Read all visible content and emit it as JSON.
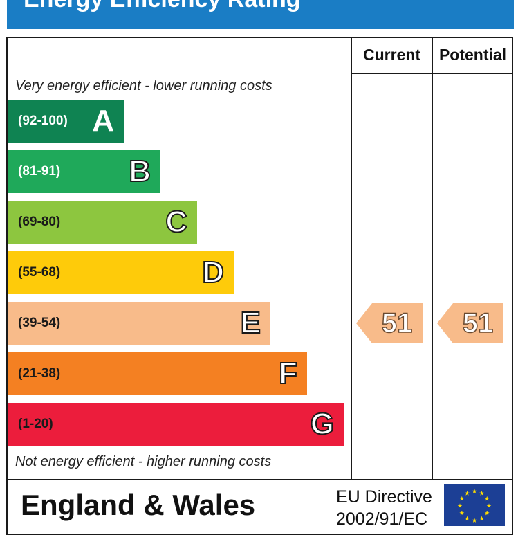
{
  "title": "Energy Efficiency Rating",
  "columns": {
    "current": "Current",
    "potential": "Potential"
  },
  "captions": {
    "top": "Very energy efficient - lower running costs",
    "bottom": "Not energy efficient - higher running costs"
  },
  "chart_data": {
    "type": "bar",
    "title": "Energy Efficiency Rating",
    "categories": [
      "A",
      "B",
      "C",
      "D",
      "E",
      "F",
      "G"
    ],
    "ranges": [
      "(92-100)",
      "(81-91)",
      "(69-80)",
      "(55-68)",
      "(39-54)",
      "(21-38)",
      "(1-20)"
    ],
    "colors": [
      "#0f8352",
      "#1fa95a",
      "#8dc63f",
      "#fecb0a",
      "#f8bb8a",
      "#f48022",
      "#ec1d3c"
    ],
    "range_text_light": [
      true,
      true,
      false,
      false,
      false,
      false,
      false
    ],
    "current_rating": 51,
    "potential_rating": 51,
    "current_band": "E",
    "potential_band": "E"
  },
  "ratings": {
    "current": "51",
    "potential": "51"
  },
  "footer": {
    "country": "England & Wales",
    "directive_line1": "EU Directive",
    "directive_line2": "2002/91/EC"
  },
  "flag_color": "#1c3f95",
  "star_color": "#ffdd00"
}
